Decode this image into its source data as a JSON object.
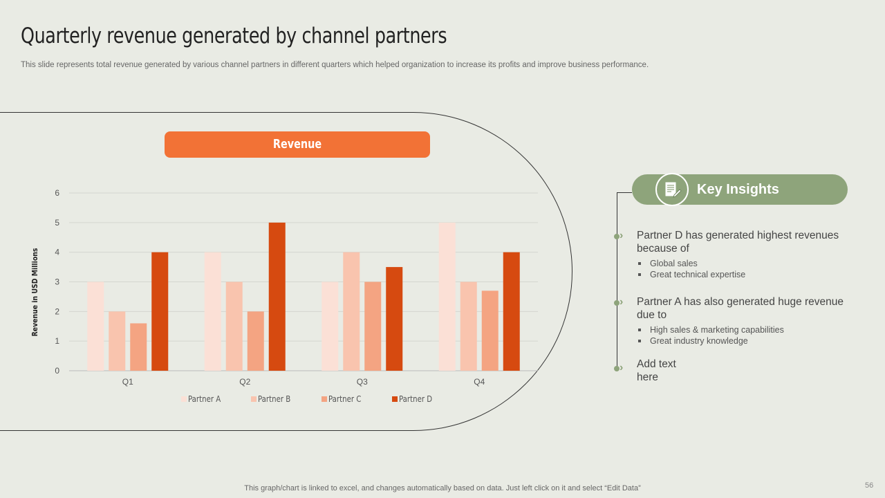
{
  "slide": {
    "title": "Quarterly revenue generated by channel partners",
    "subtitle": "This slide represents total revenue generated by various channel partners in different quarters which helped organization to increase its profits and improve business performance.",
    "footer": "This graph/chart is linked to excel, and changes automatically based on data. Just left click on it and select “Edit Data”",
    "page_number": "56"
  },
  "chart_banner": "Revenue",
  "colors": {
    "accent_orange": "#f27236",
    "insight_green": "#8ea47b",
    "background": "#e9ebe4"
  },
  "chart_data": {
    "type": "bar",
    "title": "Revenue",
    "categories": [
      "Q1",
      "Q2",
      "Q3",
      "Q4"
    ],
    "series": [
      {
        "name": "Partner A",
        "color": "#fbe0d6",
        "values": [
          3,
          4,
          3,
          5
        ]
      },
      {
        "name": "Partner B",
        "color": "#f9c4ae",
        "values": [
          2,
          3,
          4,
          3
        ]
      },
      {
        "name": "Partner C",
        "color": "#f4a482",
        "values": [
          1.6,
          2,
          3,
          2.7
        ]
      },
      {
        "name": "Partner D",
        "color": "#d64a10",
        "values": [
          4,
          5,
          3.5,
          4
        ]
      }
    ],
    "xlabel": "",
    "ylabel": "Revenue in USD Millions",
    "ylim": [
      0,
      6
    ],
    "yticks": [
      0,
      1,
      2,
      3,
      4,
      5,
      6
    ],
    "grid": true,
    "legend": "bottom"
  },
  "key_insights": {
    "title": "Key Insights",
    "icon": "document-edit-icon",
    "points": [
      {
        "text": "Partner D has generated highest revenues because of",
        "subs": [
          "Global sales",
          "Great technical expertise"
        ]
      },
      {
        "text": "Partner A has also generated huge revenue due to",
        "subs": [
          "High sales & marketing capabilities",
          "Great industry knowledge"
        ]
      },
      {
        "text": "Add text here",
        "subs": []
      }
    ]
  }
}
